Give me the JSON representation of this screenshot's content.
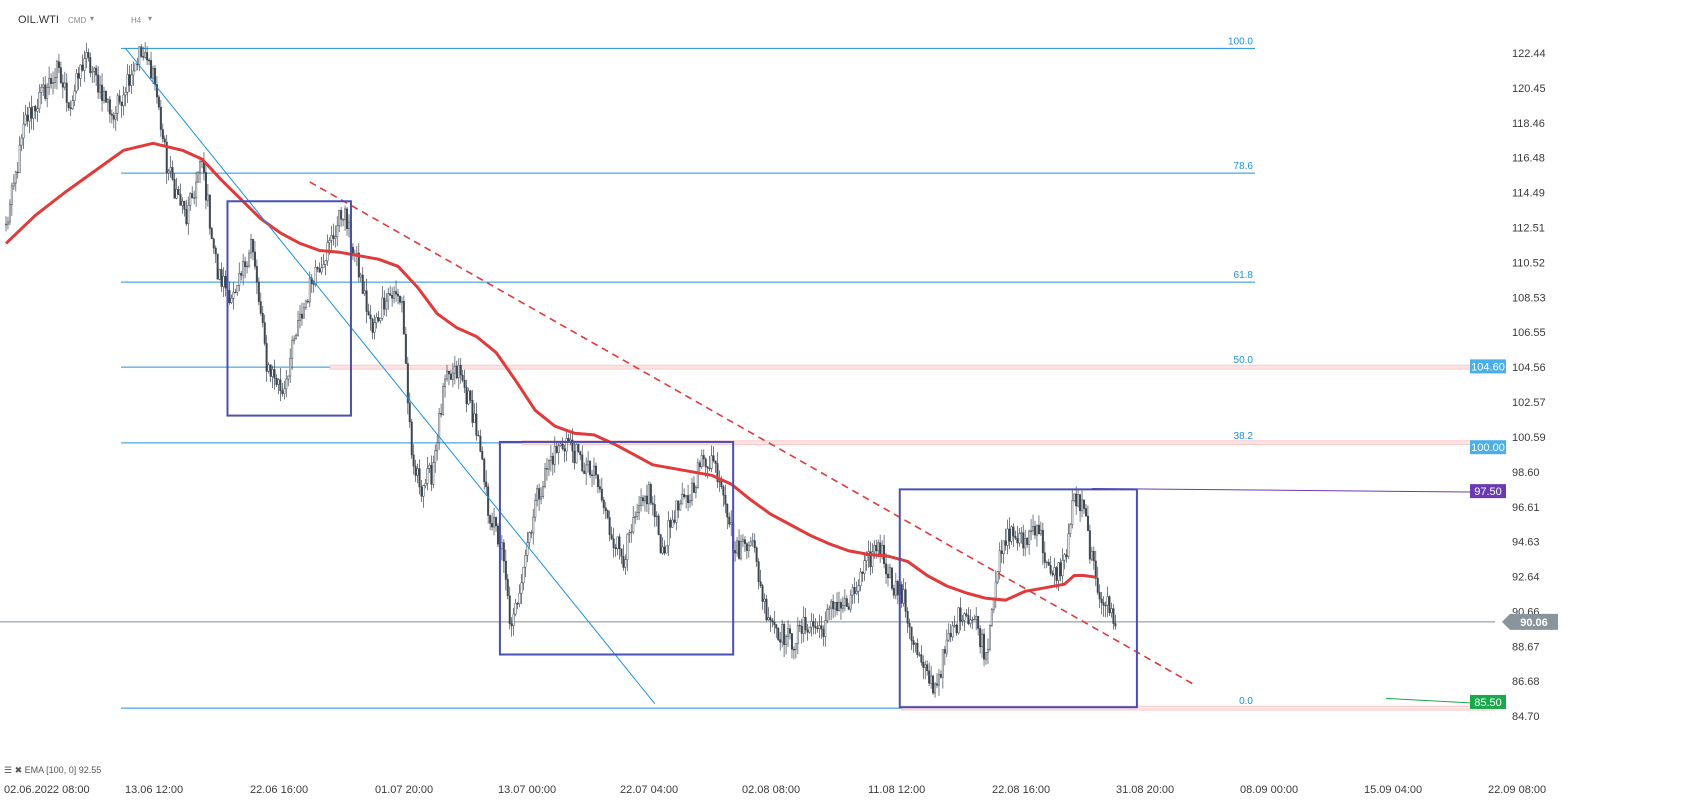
{
  "header": {
    "symbol": "OIL.WTI",
    "market": "CMD",
    "interval": "H4"
  },
  "legend": {
    "icons": "☰ ✖",
    "indicator": "EMA",
    "params": "[100, 0]",
    "value": "92.55"
  },
  "colors": {
    "candle": "#3c4650",
    "ema": "#e03a3a",
    "fib": "#1e8fe0",
    "box": "#4a4fb4",
    "trend": "#e03a3a",
    "purple": "#6a3ab2",
    "green": "#1aa84a"
  },
  "chart_data": {
    "type": "candlestick",
    "y_axis": {
      "range": [
        84.7,
        123.5
      ],
      "ticks": [
        "122.44",
        "120.45",
        "118.46",
        "116.48",
        "114.49",
        "112.51",
        "110.52",
        "108.53",
        "106.55",
        "104.56",
        "102.57",
        "100.59",
        "98.60",
        "96.61",
        "94.63",
        "92.64",
        "90.66",
        "88.67",
        "86.68",
        "84.70"
      ]
    },
    "x_axis": {
      "ticks": [
        "02.06.2022  08:00",
        "13.06  12:00",
        "22.06  16:00",
        "01.07  20:00",
        "13.07  00:00",
        "22.07  04:00",
        "02.08  08:00",
        "11.08  12:00",
        "22.08  16:00",
        "31.08  20:00",
        "08.09  00:00",
        "15.09  04:00",
        "22.09  08:00"
      ]
    },
    "price_anchors": [
      [
        0,
        112.5
      ],
      [
        4,
        114.8
      ],
      [
        10,
        118.6
      ],
      [
        18,
        120.0
      ],
      [
        26,
        121.4
      ],
      [
        33,
        119.5
      ],
      [
        40,
        122.2
      ],
      [
        48,
        120.5
      ],
      [
        55,
        118.8
      ],
      [
        62,
        121.0
      ],
      [
        68,
        122.4
      ],
      [
        75,
        121.5
      ],
      [
        82,
        116.0
      ],
      [
        92,
        113.0
      ],
      [
        100,
        116.2
      ],
      [
        108,
        109.8
      ],
      [
        117,
        108.4
      ],
      [
        125,
        111.8
      ],
      [
        133,
        104.8
      ],
      [
        141,
        103.2
      ],
      [
        149,
        106.8
      ],
      [
        157,
        109.9
      ],
      [
        165,
        111.5
      ],
      [
        172,
        113.5
      ],
      [
        180,
        110.0
      ],
      [
        187,
        106.5
      ],
      [
        194,
        108.8
      ],
      [
        202,
        108.4
      ],
      [
        207,
        99.0
      ],
      [
        212,
        97.8
      ],
      [
        217,
        98.5
      ],
      [
        224,
        103.6
      ],
      [
        231,
        104.3
      ],
      [
        239,
        101.7
      ],
      [
        246,
        96.5
      ],
      [
        253,
        94.1
      ],
      [
        258,
        89.4
      ],
      [
        264,
        93.5
      ],
      [
        270,
        96.8
      ],
      [
        278,
        99.4
      ],
      [
        286,
        100.4
      ],
      [
        294,
        99.0
      ],
      [
        301,
        98.2
      ],
      [
        308,
        95.3
      ],
      [
        315,
        93.8
      ],
      [
        322,
        96.0
      ],
      [
        328,
        97.5
      ],
      [
        335,
        94.1
      ],
      [
        341,
        96.3
      ],
      [
        348,
        97.0
      ],
      [
        354,
        99.0
      ],
      [
        360,
        99.4
      ],
      [
        366,
        97.8
      ],
      [
        372,
        94.0
      ],
      [
        380,
        95.0
      ],
      [
        387,
        91.0
      ],
      [
        394,
        89.6
      ],
      [
        401,
        88.9
      ],
      [
        409,
        90.0
      ],
      [
        416,
        89.6
      ],
      [
        423,
        91.2
      ],
      [
        430,
        90.9
      ],
      [
        438,
        93.0
      ],
      [
        445,
        94.6
      ],
      [
        452,
        92.4
      ],
      [
        458,
        91.3
      ],
      [
        463,
        88.9
      ],
      [
        468,
        87.2
      ],
      [
        474,
        86.4
      ],
      [
        481,
        89.0
      ],
      [
        488,
        90.8
      ],
      [
        495,
        90.0
      ],
      [
        500,
        88.2
      ],
      [
        505,
        92.8
      ],
      [
        512,
        95.2
      ],
      [
        519,
        94.5
      ],
      [
        526,
        95.8
      ],
      [
        533,
        92.4
      ],
      [
        540,
        93.5
      ],
      [
        545,
        97.2
      ],
      [
        550,
        96.3
      ],
      [
        556,
        92.2
      ],
      [
        561,
        91.2
      ],
      [
        566,
        90.1
      ]
    ],
    "ema_100": [
      [
        0,
        111.6
      ],
      [
        15,
        113.2
      ],
      [
        30,
        114.5
      ],
      [
        45,
        115.7
      ],
      [
        60,
        116.9
      ],
      [
        75,
        117.3
      ],
      [
        90,
        116.9
      ],
      [
        100,
        116.4
      ],
      [
        110,
        115.2
      ],
      [
        120,
        114.1
      ],
      [
        130,
        113.0
      ],
      [
        140,
        112.2
      ],
      [
        150,
        111.6
      ],
      [
        160,
        111.2
      ],
      [
        170,
        111.1
      ],
      [
        180,
        110.9
      ],
      [
        190,
        110.7
      ],
      [
        200,
        110.3
      ],
      [
        210,
        109.1
      ],
      [
        220,
        107.6
      ],
      [
        230,
        106.8
      ],
      [
        240,
        106.3
      ],
      [
        250,
        105.4
      ],
      [
        260,
        103.8
      ],
      [
        270,
        102.1
      ],
      [
        280,
        101.2
      ],
      [
        290,
        100.8
      ],
      [
        300,
        100.7
      ],
      [
        310,
        100.2
      ],
      [
        320,
        99.6
      ],
      [
        330,
        99.0
      ],
      [
        340,
        98.8
      ],
      [
        350,
        98.6
      ],
      [
        360,
        98.4
      ],
      [
        370,
        97.9
      ],
      [
        380,
        97.0
      ],
      [
        390,
        96.2
      ],
      [
        400,
        95.6
      ],
      [
        410,
        95.0
      ],
      [
        420,
        94.5
      ],
      [
        430,
        94.1
      ],
      [
        440,
        93.9
      ],
      [
        450,
        93.8
      ],
      [
        460,
        93.5
      ],
      [
        470,
        92.7
      ],
      [
        480,
        92.1
      ],
      [
        490,
        91.7
      ],
      [
        500,
        91.4
      ],
      [
        510,
        91.3
      ],
      [
        520,
        91.8
      ],
      [
        530,
        92.0
      ],
      [
        540,
        92.2
      ],
      [
        545,
        92.7
      ],
      [
        550,
        92.7
      ],
      [
        556,
        92.6
      ]
    ],
    "fibonacci": {
      "levels": [
        "100.0",
        "78.6",
        "61.8",
        "50.0",
        "38.2",
        "0.0"
      ],
      "values": [
        122.7,
        115.6,
        109.4,
        104.56,
        100.25,
        85.15
      ]
    },
    "price_labels": [
      {
        "value": 104.6,
        "text": "104.60",
        "color": "#4aaee8"
      },
      {
        "value": 100.0,
        "text": "100.00",
        "color": "#4aaee8"
      },
      {
        "value": 97.5,
        "text": "97.50",
        "color": "#6a3ab2"
      },
      {
        "value": 90.06,
        "text": "90.06",
        "color": "#8a949c"
      },
      {
        "value": 85.5,
        "text": "85.50",
        "color": "#1aa84a"
      }
    ],
    "boxes": [
      {
        "from": [
          113,
          114.0
        ],
        "to": [
          176,
          101.8
        ]
      },
      {
        "from": [
          252,
          100.3
        ],
        "to": [
          371,
          88.2
        ]
      },
      {
        "from": [
          456,
          97.6
        ],
        "to": [
          577,
          85.2
        ]
      }
    ],
    "trendlines": [
      {
        "from": [
          61,
          122.7
        ],
        "to": [
          331,
          85.4
        ],
        "style": "solid"
      },
      {
        "from": [
          155,
          115.1
        ],
        "to": [
          606,
          86.5
        ],
        "style": "dashed"
      }
    ]
  }
}
